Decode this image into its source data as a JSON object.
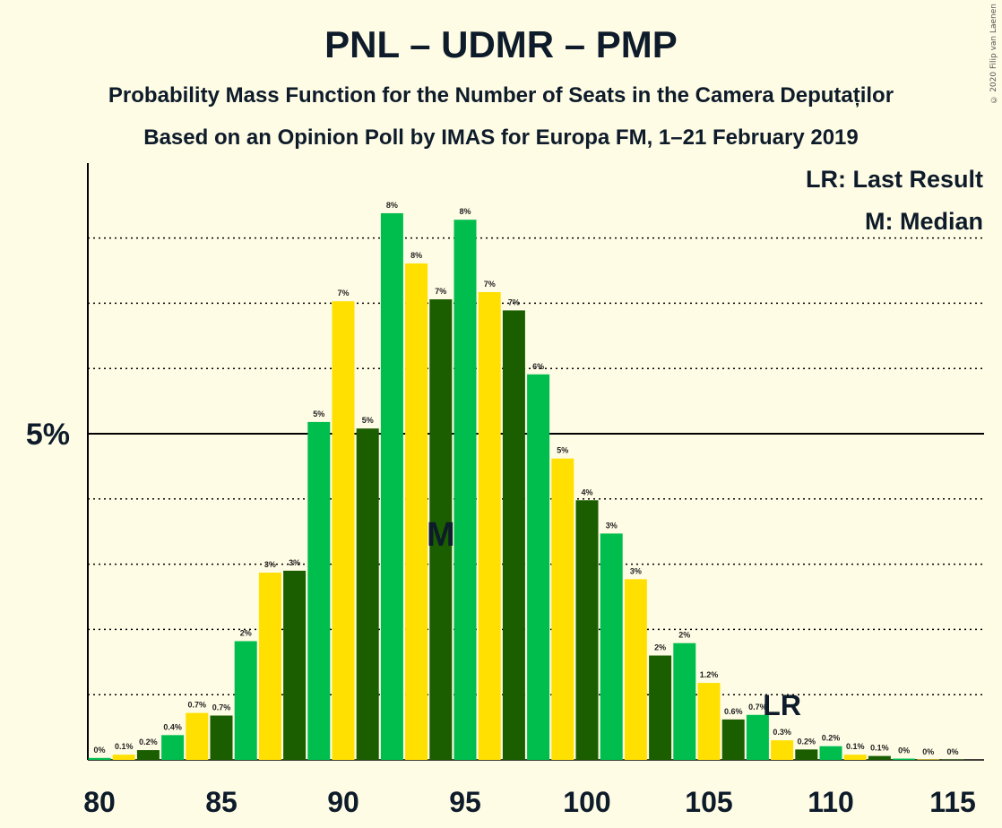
{
  "title": "PNL – UDMR – PMP",
  "subtitle_1": "Probability Mass Function for the Number of Seats in the Camera Deputaților",
  "subtitle_2": "Based on an Opinion Poll by IMAS for Europa FM, 1–21 February 2019",
  "copyright": "© 2020 Filip van Laenen",
  "legend": {
    "last_result": "LR: Last Result",
    "median": "M: Median"
  },
  "colors": {
    "background": "#FFFCE5",
    "palette": [
      "#1B5E00",
      "#00BE4E",
      "#FFE000"
    ],
    "text": "#0d1b2a"
  },
  "chart_data": {
    "type": "bar",
    "x": [
      80,
      81,
      82,
      83,
      84,
      85,
      86,
      87,
      88,
      89,
      90,
      91,
      92,
      93,
      94,
      95,
      96,
      97,
      98,
      99,
      100,
      101,
      102,
      103,
      104,
      105,
      106,
      107,
      108,
      109,
      110,
      111,
      112,
      113,
      114,
      115
    ],
    "values": [
      0.03,
      0.08,
      0.15,
      0.38,
      0.72,
      0.68,
      1.82,
      2.87,
      2.9,
      5.18,
      7.03,
      5.08,
      8.38,
      7.61,
      7.06,
      8.28,
      7.17,
      6.89,
      5.91,
      4.62,
      3.98,
      3.47,
      2.77,
      1.6,
      1.79,
      1.18,
      0.62,
      0.69,
      0.3,
      0.16,
      0.21,
      0.08,
      0.06,
      0.02,
      0,
      0
    ],
    "labels": [
      "0%",
      "0.1%",
      "0.2%",
      "0.4%",
      "0.7%",
      "0.7%",
      "2%",
      "3%",
      "3%",
      "5%",
      "7%",
      "5%",
      "8%",
      "8%",
      "7%",
      "8%",
      "7%",
      "7%",
      "6%",
      "5%",
      "4%",
      "3%",
      "3%",
      "2%",
      "2%",
      "1.2%",
      "0.6%",
      "0.7%",
      "0.3%",
      "0.2%",
      "0.2%",
      "0.1%",
      "0.1%",
      "0%",
      "0%",
      "0%"
    ],
    "colors": [
      "#00BE4E",
      "#FFE000",
      "#1B5E00",
      "#00BE4E",
      "#FFE000",
      "#1B5E00",
      "#00BE4E",
      "#FFE000",
      "#1B5E00",
      "#00BE4E",
      "#FFE000",
      "#1B5E00",
      "#00BE4E",
      "#FFE000",
      "#1B5E00",
      "#00BE4E",
      "#FFE000",
      "#1B5E00",
      "#00BE4E",
      "#FFE000",
      "#1B5E00",
      "#00BE4E",
      "#FFE000",
      "#1B5E00",
      "#00BE4E",
      "#FFE000",
      "#1B5E00",
      "#00BE4E",
      "#FFE000",
      "#1B5E00",
      "#00BE4E",
      "#FFE000",
      "#1B5E00",
      "#00BE4E",
      "#FFE000",
      "#1B5E00"
    ],
    "x_ticks": [
      80,
      85,
      90,
      95,
      100,
      105,
      110,
      115
    ],
    "y_tick_label": "5%",
    "y_tick_value": 5,
    "ylim": [
      0,
      9.1
    ],
    "median_seat": 94,
    "median_label": "M",
    "last_result_seat": 108,
    "last_result_label": "LR",
    "grid": true
  }
}
